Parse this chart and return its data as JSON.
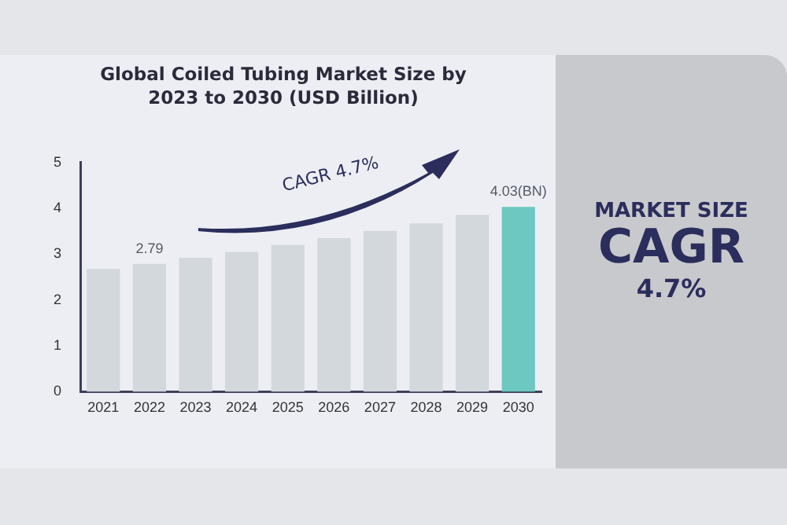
{
  "chart_data": {
    "type": "bar",
    "title": "Global Coiled Tubing Market Size by 2023 to 2030 (USD Billion)",
    "categories": [
      "2021",
      "2022",
      "2023",
      "2024",
      "2025",
      "2026",
      "2027",
      "2028",
      "2029",
      "2030"
    ],
    "values": [
      2.68,
      2.79,
      2.92,
      3.05,
      3.2,
      3.35,
      3.51,
      3.67,
      3.86,
      4.03
    ],
    "colors": [
      "#d3d8dc",
      "#d3d8dc",
      "#d3d8dc",
      "#d3d8dc",
      "#d3d8dc",
      "#d3d8dc",
      "#d3d8dc",
      "#d3d8dc",
      "#d3d8dc",
      "#6cc8c0"
    ],
    "value_labels": [
      null,
      "2.79",
      null,
      null,
      null,
      null,
      null,
      null,
      null,
      "4.03(BN)"
    ],
    "ylim": [
      0,
      5
    ],
    "yticks": [
      0,
      1,
      2,
      3,
      4,
      5
    ],
    "grid": false,
    "annotations": [
      "CAGR 4.7%",
      "MARKET SIZE",
      "CAGR",
      "4.7%"
    ]
  }
}
